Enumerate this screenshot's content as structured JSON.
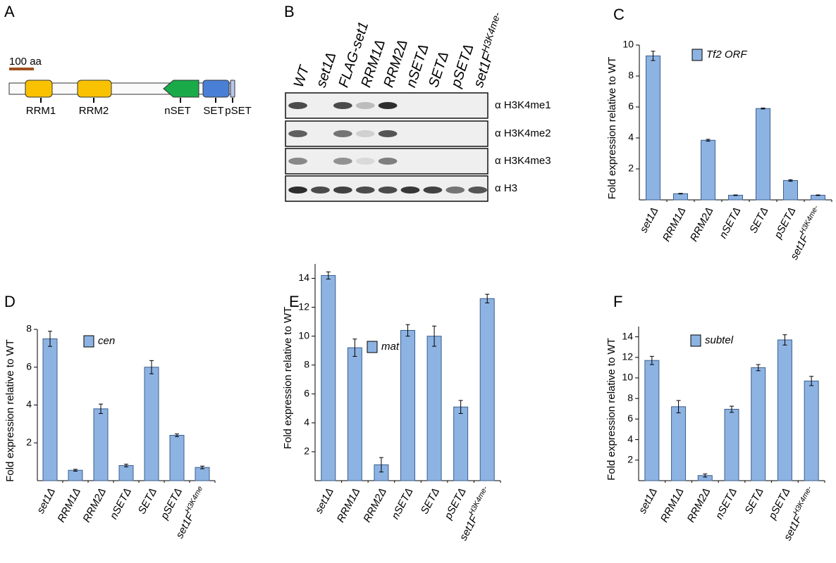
{
  "panel_labels": [
    "A",
    "B",
    "C",
    "D",
    "E",
    "F"
  ],
  "domain_map": {
    "scale_label": "100 aa",
    "domains": [
      "RRM1",
      "RRM2",
      "nSET",
      "SET",
      "pSET"
    ]
  },
  "blot": {
    "lanes": [
      "WT",
      "set1Δ",
      "FLAG-set1",
      "RRM1Δ",
      "RRM2Δ",
      "nSETΔ",
      "SETΔ",
      "pSETΔ",
      "set1F"
    ],
    "lane_superscripts": [
      null,
      null,
      null,
      null,
      null,
      null,
      null,
      null,
      "H3K4me-"
    ],
    "antibodies": [
      "α H3K4me1",
      "α H3K4me2",
      "α H3K4me3",
      "α H3"
    ]
  },
  "chart_data": [
    {
      "type": "bar",
      "ylabel": "Fold expression relative to WT",
      "categories": [
        "set1Δ",
        "RRM1Δ",
        "RRM2Δ",
        "nSETΔ",
        "SETΔ",
        "pSETΔ",
        "set1F"
      ],
      "superscripts": [
        null,
        null,
        null,
        null,
        null,
        null,
        "H3K4me-"
      ],
      "series": [
        {
          "name": "Tf2 ORF",
          "color": "#8db3e2",
          "values": [
            9.3,
            0.4,
            3.85,
            0.3,
            5.9,
            1.25,
            0.3
          ],
          "errors": [
            0.3,
            0.02,
            0.06,
            0.02,
            0.03,
            0.05,
            0.02
          ]
        }
      ],
      "ylim": [
        0,
        10
      ],
      "yticks": [
        2,
        4,
        6,
        8,
        10
      ]
    },
    {
      "type": "bar",
      "ylabel": "Fold expression relative to WT",
      "categories": [
        "set1Δ",
        "RRM1Δ",
        "RRM2Δ",
        "nSETΔ",
        "SETΔ",
        "pSETΔ",
        "set1F"
      ],
      "superscripts": [
        null,
        null,
        null,
        null,
        null,
        null,
        "H3K4me"
      ],
      "series": [
        {
          "name": "cen",
          "color": "#8db3e2",
          "values": [
            7.5,
            0.55,
            3.8,
            0.8,
            6.0,
            2.4,
            0.7
          ],
          "errors": [
            0.4,
            0.05,
            0.25,
            0.07,
            0.35,
            0.07,
            0.07
          ]
        }
      ],
      "ylim": [
        0,
        8
      ],
      "yticks": [
        2,
        4,
        6,
        8
      ]
    },
    {
      "type": "bar",
      "ylabel": "Fold expression relative to WT",
      "categories": [
        "set1Δ",
        "RRM1Δ",
        "RRM2Δ",
        "nSETΔ",
        "SETΔ",
        "pSETΔ",
        "set1F"
      ],
      "superscripts": [
        null,
        null,
        null,
        null,
        null,
        null,
        "H3K4me-"
      ],
      "series": [
        {
          "name": "mat",
          "color": "#8db3e2",
          "values": [
            14.2,
            9.2,
            1.1,
            10.4,
            10.0,
            5.1,
            12.6
          ],
          "errors": [
            0.25,
            0.6,
            0.5,
            0.4,
            0.7,
            0.45,
            0.3
          ]
        }
      ],
      "ylim": [
        0,
        15
      ],
      "yticks": [
        2,
        4,
        6,
        8,
        10,
        12,
        14
      ]
    },
    {
      "type": "bar",
      "ylabel": "Fold expression relative to WT",
      "categories": [
        "set1Δ",
        "RRM1Δ",
        "RRM2Δ",
        "nSETΔ",
        "SETΔ",
        "pSETΔ",
        "set1F"
      ],
      "superscripts": [
        null,
        null,
        null,
        null,
        null,
        null,
        "H3K4me-"
      ],
      "series": [
        {
          "name": "subtel",
          "color": "#8db3e2",
          "values": [
            11.7,
            7.2,
            0.5,
            6.95,
            11.0,
            13.7,
            9.7
          ],
          "errors": [
            0.4,
            0.6,
            0.15,
            0.3,
            0.3,
            0.5,
            0.45
          ]
        }
      ],
      "ylim": [
        0,
        15
      ],
      "yticks": [
        2,
        4,
        6,
        8,
        10,
        12,
        14
      ]
    }
  ]
}
